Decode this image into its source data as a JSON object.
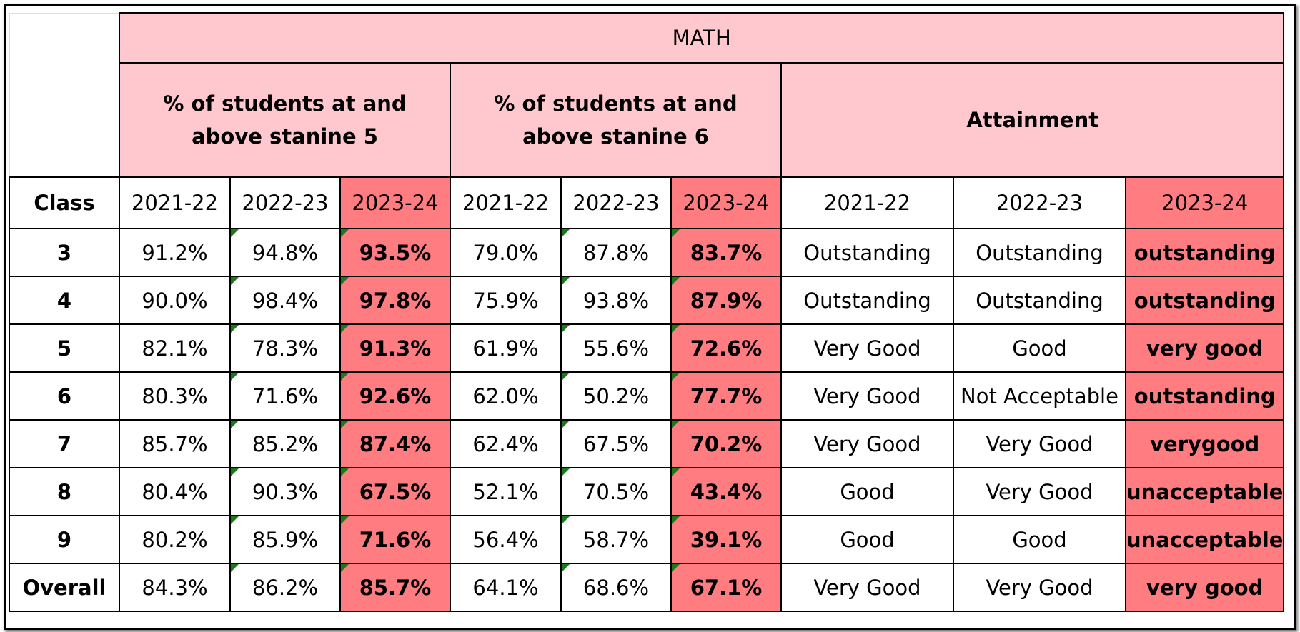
{
  "table": {
    "title": "MATH",
    "groups": [
      "% of students at and above stanine 5",
      "% of students at and above stanine 6",
      "Attainment"
    ],
    "columns": [
      "Class",
      "2021-22",
      "2022-23",
      "2023-24",
      "2021-22",
      "2022-23",
      "2023-24",
      "2021-22",
      "2022-23",
      "2023-24"
    ],
    "rows": [
      [
        "3",
        "91.2%",
        "94.8%",
        "93.5%",
        "79.0%",
        "87.8%",
        "83.7%",
        "Outstanding",
        "Outstanding",
        "outstanding"
      ],
      [
        "4",
        "90.0%",
        "98.4%",
        "97.8%",
        "75.9%",
        "93.8%",
        "87.9%",
        "Outstanding",
        "Outstanding",
        "outstanding"
      ],
      [
        "5",
        "82.1%",
        "78.3%",
        "91.3%",
        "61.9%",
        "55.6%",
        "72.6%",
        "Very Good",
        "Good",
        "very good"
      ],
      [
        "6",
        "80.3%",
        "71.6%",
        "92.6%",
        "62.0%",
        "50.2%",
        "77.7%",
        "Very Good",
        "Not Acceptable",
        "outstanding"
      ],
      [
        "7",
        "85.7%",
        "85.2%",
        "87.4%",
        "62.4%",
        "67.5%",
        "70.2%",
        "Very Good",
        "Very Good",
        "verygood"
      ],
      [
        "8",
        "80.4%",
        "90.3%",
        "67.5%",
        "52.1%",
        "70.5%",
        "43.4%",
        "Good",
        "Very Good",
        "unacceptable"
      ],
      [
        "9",
        "80.2%",
        "85.9%",
        "71.6%",
        "56.4%",
        "58.7%",
        "39.1%",
        "Good",
        "Good",
        "unacceptable"
      ],
      [
        "Overall",
        "84.3%",
        "86.2%",
        "85.7%",
        "64.1%",
        "68.6%",
        "67.1%",
        "Very Good",
        "Very Good",
        "very good"
      ]
    ]
  }
}
